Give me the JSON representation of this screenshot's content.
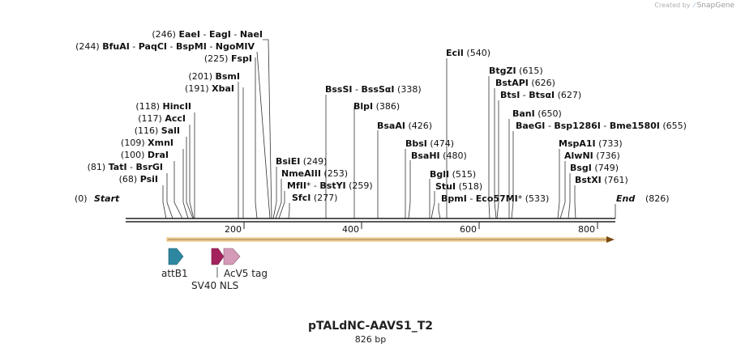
{
  "credit": {
    "prefix": "Created by",
    "brand": "SnapGene"
  },
  "plasmid": {
    "name": "pTALdNC-AAVS1_T2",
    "length_label": "826 bp",
    "length": 826
  },
  "ruler": {
    "ticks": [
      "200",
      "400",
      "600",
      "800"
    ]
  },
  "ends": {
    "start_label": "Start",
    "start_pos": "(0)",
    "end_label": "End",
    "end_pos": "(826)"
  },
  "sites": [
    {
      "parts": [
        {
          "t": "(246)",
          "b": false
        },
        {
          "t": "EaeI",
          "b": true
        },
        {
          "t": " - ",
          "b": false
        },
        {
          "t": "EagI",
          "b": true
        },
        {
          "t": " - ",
          "b": false
        },
        {
          "t": "NaeI",
          "b": true
        }
      ]
    },
    {
      "parts": [
        {
          "t": "(244)",
          "b": false
        },
        {
          "t": "BfuAI",
          "b": true
        },
        {
          "t": " - ",
          "b": false
        },
        {
          "t": "PaqCI",
          "b": true
        },
        {
          "t": " - ",
          "b": false
        },
        {
          "t": "BspMI",
          "b": true
        },
        {
          "t": " - ",
          "b": false
        },
        {
          "t": "NgoMIV",
          "b": true
        }
      ]
    },
    {
      "parts": [
        {
          "t": "(225)",
          "b": false
        },
        {
          "t": "FspI",
          "b": true
        }
      ]
    },
    {
      "parts": [
        {
          "t": "(201)",
          "b": false
        },
        {
          "t": "BsmI",
          "b": true
        }
      ]
    },
    {
      "parts": [
        {
          "t": "(191)",
          "b": false
        },
        {
          "t": "XbaI",
          "b": true
        }
      ]
    },
    {
      "parts": [
        {
          "t": "(118)",
          "b": false
        },
        {
          "t": "HincII",
          "b": true
        }
      ]
    },
    {
      "parts": [
        {
          "t": "(117)",
          "b": false
        },
        {
          "t": "AccI",
          "b": true
        }
      ]
    },
    {
      "parts": [
        {
          "t": "(116)",
          "b": false
        },
        {
          "t": "SalI",
          "b": true
        }
      ]
    },
    {
      "parts": [
        {
          "t": "(109)",
          "b": false
        },
        {
          "t": "XmnI",
          "b": true
        }
      ]
    },
    {
      "parts": [
        {
          "t": "(100)",
          "b": false
        },
        {
          "t": "DraI",
          "b": true
        }
      ]
    },
    {
      "parts": [
        {
          "t": "(81)",
          "b": false
        },
        {
          "t": "TatI",
          "b": true
        },
        {
          "t": " - ",
          "b": false
        },
        {
          "t": "BsrGI",
          "b": true
        }
      ]
    },
    {
      "parts": [
        {
          "t": "(68)",
          "b": false
        },
        {
          "t": "PsiI",
          "b": true
        }
      ]
    },
    {
      "parts": [
        {
          "t": "BsiEI",
          "b": true
        },
        {
          "t": "(249)",
          "b": false
        }
      ]
    },
    {
      "parts": [
        {
          "t": "NmeAIII",
          "b": true
        },
        {
          "t": "(253)",
          "b": false
        }
      ]
    },
    {
      "parts": [
        {
          "t": "MfII",
          "b": true
        },
        {
          "t": "*",
          "b": false
        },
        {
          "t": " - ",
          "b": false
        },
        {
          "t": "BstYI",
          "b": true
        },
        {
          "t": "(259)",
          "b": false
        }
      ]
    },
    {
      "parts": [
        {
          "t": "SfcI",
          "b": true
        },
        {
          "t": "(277)",
          "b": false
        }
      ]
    },
    {
      "parts": [
        {
          "t": "BssSI",
          "b": true
        },
        {
          "t": " - ",
          "b": false
        },
        {
          "t": "BssSαI",
          "b": true
        },
        {
          "t": "(338)",
          "b": false
        }
      ]
    },
    {
      "parts": [
        {
          "t": "BlpI",
          "b": true
        },
        {
          "t": "(386)",
          "b": false
        }
      ]
    },
    {
      "parts": [
        {
          "t": "BsaAI",
          "b": true
        },
        {
          "t": "(426)",
          "b": false
        }
      ]
    },
    {
      "parts": [
        {
          "t": "BbsI",
          "b": true
        },
        {
          "t": "(474)",
          "b": false
        }
      ]
    },
    {
      "parts": [
        {
          "t": "BsaHI",
          "b": true
        },
        {
          "t": "(480)",
          "b": false
        }
      ]
    },
    {
      "parts": [
        {
          "t": "BglI",
          "b": true
        },
        {
          "t": "(515)",
          "b": false
        }
      ]
    },
    {
      "parts": [
        {
          "t": "StuI",
          "b": true
        },
        {
          "t": "(518)",
          "b": false
        }
      ]
    },
    {
      "parts": [
        {
          "t": "BpmI",
          "b": true
        },
        {
          "t": " - ",
          "b": false
        },
        {
          "t": "Eco57MI",
          "b": true
        },
        {
          "t": "*",
          "b": false
        },
        {
          "t": "(533)",
          "b": false
        }
      ]
    },
    {
      "parts": [
        {
          "t": "EciI",
          "b": true
        },
        {
          "t": "(540)",
          "b": false
        }
      ]
    },
    {
      "parts": [
        {
          "t": "BtgZI",
          "b": true
        },
        {
          "t": "(615)",
          "b": false
        }
      ]
    },
    {
      "parts": [
        {
          "t": "BstAPI",
          "b": true
        },
        {
          "t": "(626)",
          "b": false
        }
      ]
    },
    {
      "parts": [
        {
          "t": "BtsI",
          "b": true
        },
        {
          "t": " - ",
          "b": false
        },
        {
          "t": "BtsαI",
          "b": true
        },
        {
          "t": "(627)",
          "b": false
        }
      ]
    },
    {
      "parts": [
        {
          "t": "BanI",
          "b": true
        },
        {
          "t": "(650)",
          "b": false
        }
      ]
    },
    {
      "parts": [
        {
          "t": "BaeGI",
          "b": true
        },
        {
          "t": " - ",
          "b": false
        },
        {
          "t": "Bsp1286I",
          "b": true
        },
        {
          "t": " - ",
          "b": false
        },
        {
          "t": "Bme1580I",
          "b": true
        },
        {
          "t": "(655)",
          "b": false
        }
      ]
    },
    {
      "parts": [
        {
          "t": "MspA1I",
          "b": true
        },
        {
          "t": "(733)",
          "b": false
        }
      ]
    },
    {
      "parts": [
        {
          "t": "AlwNI",
          "b": true
        },
        {
          "t": "(736)",
          "b": false
        }
      ]
    },
    {
      "parts": [
        {
          "t": "BsgI",
          "b": true
        },
        {
          "t": "(749)",
          "b": false
        }
      ]
    },
    {
      "parts": [
        {
          "t": "BstXI",
          "b": true
        },
        {
          "t": "(761)",
          "b": false
        }
      ]
    }
  ],
  "features": [
    {
      "name": "attB1",
      "color": "#2e87a0"
    },
    {
      "name": "SV40 NLS",
      "color": "#a3225e"
    },
    {
      "name": "AcV5 tag",
      "color": "#d49ab7"
    }
  ],
  "orf_color": "#f5b560"
}
